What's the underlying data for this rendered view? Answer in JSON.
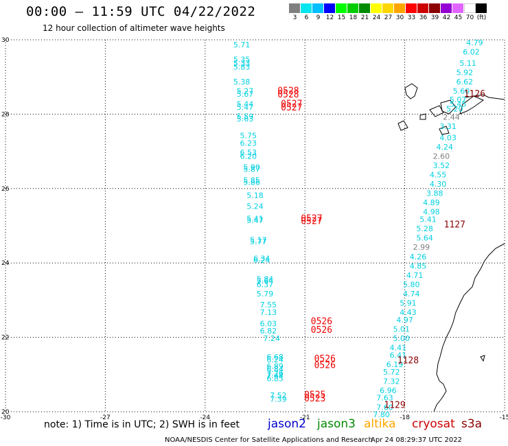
{
  "header": {
    "title": "00:00 – 11:59 UTC 04/22/2022",
    "subtitle": "12 hour collection of altimeter wave heights"
  },
  "colorbar": {
    "colors": [
      "#7f7f7f",
      "#00e5ee",
      "#00bfff",
      "#0000ff",
      "#00ff00",
      "#00cd00",
      "#008b00",
      "#ffff00",
      "#ffd700",
      "#ffa500",
      "#ff0000",
      "#cd0000",
      "#8b0000",
      "#9400d3",
      "#e066ff",
      "#ffffff",
      "#000000"
    ],
    "labels": [
      "3",
      "6",
      "9",
      "12",
      "15",
      "18",
      "21",
      "24",
      "27",
      "30",
      "33",
      "36",
      "39",
      "42",
      "45",
      "70",
      "(ft)"
    ]
  },
  "chart_data": {
    "type": "scatter",
    "x_range": [
      -30,
      -15
    ],
    "y_range": [
      20,
      30
    ],
    "x_ticks": [
      "-30",
      "-27",
      "-24",
      "-21",
      "-18",
      "-15"
    ],
    "y_ticks": [
      "30",
      "28",
      "26",
      "24",
      "22",
      "20"
    ],
    "grid": true,
    "units": "ft",
    "series": [
      {
        "name": "jason2",
        "color": "#0000cd",
        "points": []
      },
      {
        "name": "jason3",
        "color": "#008b00",
        "points": []
      },
      {
        "name": "altika",
        "color": "#ffa500",
        "points": []
      },
      {
        "name": "cryosat",
        "color": "#cd0000",
        "points": []
      },
      {
        "name": "s3a",
        "color": "#cd0000",
        "points": [
          {
            "lon": -22.9,
            "lat": 29.8,
            "v": "5.71",
            "c": "#00d0e0"
          },
          {
            "lon": -22.9,
            "lat": 29.4,
            "v": "5.35",
            "c": "#00d0e0"
          },
          {
            "lon": -22.9,
            "lat": 29.3,
            "v": "5.33",
            "c": "#00d0e0"
          },
          {
            "lon": -22.9,
            "lat": 29.2,
            "v": "5.83",
            "c": "#00d0e0"
          },
          {
            "lon": -22.9,
            "lat": 28.8,
            "v": "5.38",
            "c": "#00d0e0"
          },
          {
            "lon": -22.8,
            "lat": 28.55,
            "v": "5.27",
            "c": "#00d0e0"
          },
          {
            "lon": -22.8,
            "lat": 28.47,
            "v": "5.67",
            "c": "#00d0e0"
          },
          {
            "lon": -22.8,
            "lat": 28.2,
            "v": "5.44",
            "c": "#00d0e0"
          },
          {
            "lon": -22.8,
            "lat": 28.12,
            "v": "5.47",
            "c": "#00d0e0"
          },
          {
            "lon": -22.8,
            "lat": 27.87,
            "v": "5.59",
            "c": "#00d0e0"
          },
          {
            "lon": -22.8,
            "lat": 27.8,
            "v": "5.63",
            "c": "#00d0e0"
          },
          {
            "lon": -22.7,
            "lat": 27.35,
            "v": "5.75",
            "c": "#00d0e0"
          },
          {
            "lon": -22.7,
            "lat": 27.15,
            "v": "6.23",
            "c": "#00d0e0"
          },
          {
            "lon": -22.7,
            "lat": 26.9,
            "v": "6.53",
            "c": "#00d0e0"
          },
          {
            "lon": -22.7,
            "lat": 26.8,
            "v": "6.20",
            "c": "#00d0e0"
          },
          {
            "lon": -22.6,
            "lat": 26.5,
            "v": "5.90",
            "c": "#00d0e0"
          },
          {
            "lon": -22.6,
            "lat": 26.45,
            "v": "5.87",
            "c": "#00d0e0"
          },
          {
            "lon": -22.6,
            "lat": 26.15,
            "v": "5.85",
            "c": "#00d0e0"
          },
          {
            "lon": -22.6,
            "lat": 26.1,
            "v": "5.86",
            "c": "#00d0e0"
          },
          {
            "lon": -22.5,
            "lat": 25.75,
            "v": "5.18",
            "c": "#00d0e0"
          },
          {
            "lon": -22.5,
            "lat": 25.45,
            "v": "5.24",
            "c": "#00d0e0"
          },
          {
            "lon": -22.5,
            "lat": 25.12,
            "v": "5.41",
            "c": "#00d0e0"
          },
          {
            "lon": -22.5,
            "lat": 25.07,
            "v": "5.47",
            "c": "#00d0e0"
          },
          {
            "lon": -22.4,
            "lat": 24.55,
            "v": "5.17",
            "c": "#00d0e0"
          },
          {
            "lon": -22.4,
            "lat": 24.5,
            "v": "5.77",
            "c": "#00d0e0"
          },
          {
            "lon": -22.3,
            "lat": 24.05,
            "v": "6.34",
            "c": "#00d0e0"
          },
          {
            "lon": -22.3,
            "lat": 24.0,
            "v": "6.24",
            "c": "#00d0e0"
          },
          {
            "lon": -22.2,
            "lat": 23.5,
            "v": "5.84",
            "c": "#00d0e0"
          },
          {
            "lon": -22.2,
            "lat": 23.45,
            "v": "5.64",
            "c": "#00d0e0"
          },
          {
            "lon": -22.2,
            "lat": 23.35,
            "v": "6.37",
            "c": "#00d0e0"
          },
          {
            "lon": -22.2,
            "lat": 23.1,
            "v": "5.79",
            "c": "#00d0e0"
          },
          {
            "lon": -22.1,
            "lat": 22.8,
            "v": "7.55",
            "c": "#00d0e0"
          },
          {
            "lon": -22.1,
            "lat": 22.6,
            "v": "7.13",
            "c": "#00d0e0"
          },
          {
            "lon": -22.1,
            "lat": 22.3,
            "v": "6.03",
            "c": "#00d0e0"
          },
          {
            "lon": -22.1,
            "lat": 22.1,
            "v": "6.82",
            "c": "#00d0e0"
          },
          {
            "lon": -22.0,
            "lat": 21.9,
            "v": "7.24",
            "c": "#00d0e0"
          },
          {
            "lon": -21.9,
            "lat": 21.4,
            "v": "6.68",
            "c": "#00d0e0"
          },
          {
            "lon": -21.9,
            "lat": 21.33,
            "v": "6.24",
            "c": "#00d0e0"
          },
          {
            "lon": -21.9,
            "lat": 21.15,
            "v": "6.89",
            "c": "#00d0e0"
          },
          {
            "lon": -21.9,
            "lat": 21.07,
            "v": "6.84",
            "c": "#00d0e0"
          },
          {
            "lon": -21.9,
            "lat": 20.97,
            "v": "7.26",
            "c": "#00d0e0"
          },
          {
            "lon": -21.9,
            "lat": 20.9,
            "v": "7.44",
            "c": "#00d0e0"
          },
          {
            "lon": -21.9,
            "lat": 20.82,
            "v": "6.85",
            "c": "#00d0e0"
          },
          {
            "lon": -21.8,
            "lat": 20.37,
            "v": "7.52",
            "c": "#00d0e0"
          },
          {
            "lon": -21.8,
            "lat": 20.27,
            "v": "7.39",
            "c": "#00d0e0"
          },
          {
            "lon": -15.9,
            "lat": 29.85,
            "v": "4.79",
            "c": "#00d0e0"
          },
          {
            "lon": -16.0,
            "lat": 29.6,
            "v": "6.02",
            "c": "#00d0e0"
          },
          {
            "lon": -16.1,
            "lat": 29.3,
            "v": "5.11",
            "c": "#00d0e0"
          },
          {
            "lon": -16.2,
            "lat": 29.05,
            "v": "5.92",
            "c": "#00d0e0"
          },
          {
            "lon": -16.2,
            "lat": 28.8,
            "v": "6.62",
            "c": "#00d0e0"
          },
          {
            "lon": -16.3,
            "lat": 28.55,
            "v": "5.60",
            "c": "#00d0e0"
          },
          {
            "lon": -16.4,
            "lat": 28.32,
            "v": "5.07",
            "c": "#00d0e0"
          },
          {
            "lon": -16.4,
            "lat": 28.2,
            "v": "5.45",
            "c": "#00d0e0"
          },
          {
            "lon": -16.5,
            "lat": 28.07,
            "v": "5.20",
            "c": "#00d0e0"
          },
          {
            "lon": -16.6,
            "lat": 27.85,
            "v": "2.44",
            "c": "#7f7f7f"
          },
          {
            "lon": -16.7,
            "lat": 27.6,
            "v": "3.31",
            "c": "#00d0e0"
          },
          {
            "lon": -16.7,
            "lat": 27.3,
            "v": "4.03",
            "c": "#00d0e0"
          },
          {
            "lon": -16.8,
            "lat": 27.05,
            "v": "4.24",
            "c": "#00d0e0"
          },
          {
            "lon": -16.9,
            "lat": 26.8,
            "v": "2.60",
            "c": "#7f7f7f"
          },
          {
            "lon": -16.9,
            "lat": 26.55,
            "v": "3.52",
            "c": "#00d0e0"
          },
          {
            "lon": -17.0,
            "lat": 26.3,
            "v": "4.55",
            "c": "#00d0e0"
          },
          {
            "lon": -17.0,
            "lat": 26.05,
            "v": "4.30",
            "c": "#00d0e0"
          },
          {
            "lon": -17.1,
            "lat": 25.8,
            "v": "3.88",
            "c": "#00d0e0"
          },
          {
            "lon": -17.2,
            "lat": 25.55,
            "v": "4.89",
            "c": "#00d0e0"
          },
          {
            "lon": -17.2,
            "lat": 25.3,
            "v": "4.98",
            "c": "#00d0e0"
          },
          {
            "lon": -17.3,
            "lat": 25.1,
            "v": "5.41",
            "c": "#00d0e0"
          },
          {
            "lon": -17.4,
            "lat": 24.85,
            "v": "5.28",
            "c": "#00d0e0"
          },
          {
            "lon": -17.4,
            "lat": 24.6,
            "v": "5.64",
            "c": "#00d0e0"
          },
          {
            "lon": -17.5,
            "lat": 24.35,
            "v": "2.99",
            "c": "#7f7f7f"
          },
          {
            "lon": -17.6,
            "lat": 24.1,
            "v": "4.26",
            "c": "#00d0e0"
          },
          {
            "lon": -17.6,
            "lat": 23.85,
            "v": "4.85",
            "c": "#00d0e0"
          },
          {
            "lon": -17.7,
            "lat": 23.6,
            "v": "4.71",
            "c": "#00d0e0"
          },
          {
            "lon": -17.8,
            "lat": 23.35,
            "v": "5.80",
            "c": "#00d0e0"
          },
          {
            "lon": -17.8,
            "lat": 23.1,
            "v": "4.74",
            "c": "#00d0e0"
          },
          {
            "lon": -17.9,
            "lat": 22.85,
            "v": "5.91",
            "c": "#00d0e0"
          },
          {
            "lon": -17.9,
            "lat": 22.6,
            "v": "4.43",
            "c": "#00d0e0"
          },
          {
            "lon": -18.0,
            "lat": 22.4,
            "v": "4.97",
            "c": "#00d0e0"
          },
          {
            "lon": -18.1,
            "lat": 22.15,
            "v": "5.01",
            "c": "#00d0e0"
          },
          {
            "lon": -18.1,
            "lat": 21.9,
            "v": "5.00",
            "c": "#00d0e0"
          },
          {
            "lon": -18.2,
            "lat": 21.65,
            "v": "4.41",
            "c": "#00d0e0"
          },
          {
            "lon": -18.2,
            "lat": 21.45,
            "v": "6.41",
            "c": "#00d0e0"
          },
          {
            "lon": -18.3,
            "lat": 21.2,
            "v": "6.19",
            "c": "#00d0e0"
          },
          {
            "lon": -18.4,
            "lat": 21.0,
            "v": "5.72",
            "c": "#00d0e0"
          },
          {
            "lon": -18.4,
            "lat": 20.75,
            "v": "7.32",
            "c": "#00d0e0"
          },
          {
            "lon": -18.5,
            "lat": 20.5,
            "v": "6.96",
            "c": "#00d0e0"
          },
          {
            "lon": -18.6,
            "lat": 20.3,
            "v": "7.63",
            "c": "#00d0e0"
          },
          {
            "lon": -18.6,
            "lat": 20.05,
            "v": "7.60",
            "c": "#00d0e0"
          },
          {
            "lon": -18.7,
            "lat": 19.85,
            "v": "7.80",
            "c": "#00d0e0"
          }
        ]
      }
    ],
    "time_labels": [
      {
        "lon": -21.5,
        "lat": 28.55,
        "t": "0528",
        "c": "#ee0000"
      },
      {
        "lon": -21.5,
        "lat": 28.45,
        "t": "0528",
        "c": "#ee0000"
      },
      {
        "lon": -21.4,
        "lat": 28.2,
        "t": "0527",
        "c": "#ee0000"
      },
      {
        "lon": -21.4,
        "lat": 28.1,
        "t": "0527",
        "c": "#ee0000"
      },
      {
        "lon": -20.8,
        "lat": 25.12,
        "t": "0527",
        "c": "#ee0000"
      },
      {
        "lon": -20.8,
        "lat": 25.05,
        "t": "0527",
        "c": "#ee0000"
      },
      {
        "lon": -20.5,
        "lat": 22.35,
        "t": "0526",
        "c": "#ee0000"
      },
      {
        "lon": -20.5,
        "lat": 22.12,
        "t": "0526",
        "c": "#ee0000"
      },
      {
        "lon": -20.4,
        "lat": 21.35,
        "t": "0526",
        "c": "#ee0000"
      },
      {
        "lon": -20.4,
        "lat": 21.17,
        "t": "0526",
        "c": "#ee0000"
      },
      {
        "lon": -20.7,
        "lat": 20.38,
        "t": "0525",
        "c": "#ee0000"
      },
      {
        "lon": -20.7,
        "lat": 20.28,
        "t": "0523",
        "c": "#ee0000"
      },
      {
        "lon": -15.9,
        "lat": 28.47,
        "t": "1126",
        "c": "#8b0000"
      },
      {
        "lon": -16.5,
        "lat": 24.95,
        "t": "1127",
        "c": "#8b0000"
      },
      {
        "lon": -17.9,
        "lat": 21.3,
        "t": "1128",
        "c": "#8b0000"
      },
      {
        "lon": -18.3,
        "lat": 20.1,
        "t": "1129",
        "c": "#8b0000"
      }
    ]
  },
  "notes": {
    "note": "note:  1) Time is in UTC; 2) SWH is in feet",
    "legend": [
      {
        "name": "jason2",
        "color": "#0000cd"
      },
      {
        "name": "jason3",
        "color": "#008b00"
      },
      {
        "name": "altika",
        "color": "#ffa500"
      },
      {
        "name": "cryosat",
        "color": "#cd0000"
      },
      {
        "name": "s3a",
        "color": "#8b0000"
      }
    ]
  },
  "footer": {
    "credit": "NOAA/NESDIS Center for Satellite Applications and Research",
    "timestamp": "Apr 24 08:29:37 UTC 2022"
  }
}
